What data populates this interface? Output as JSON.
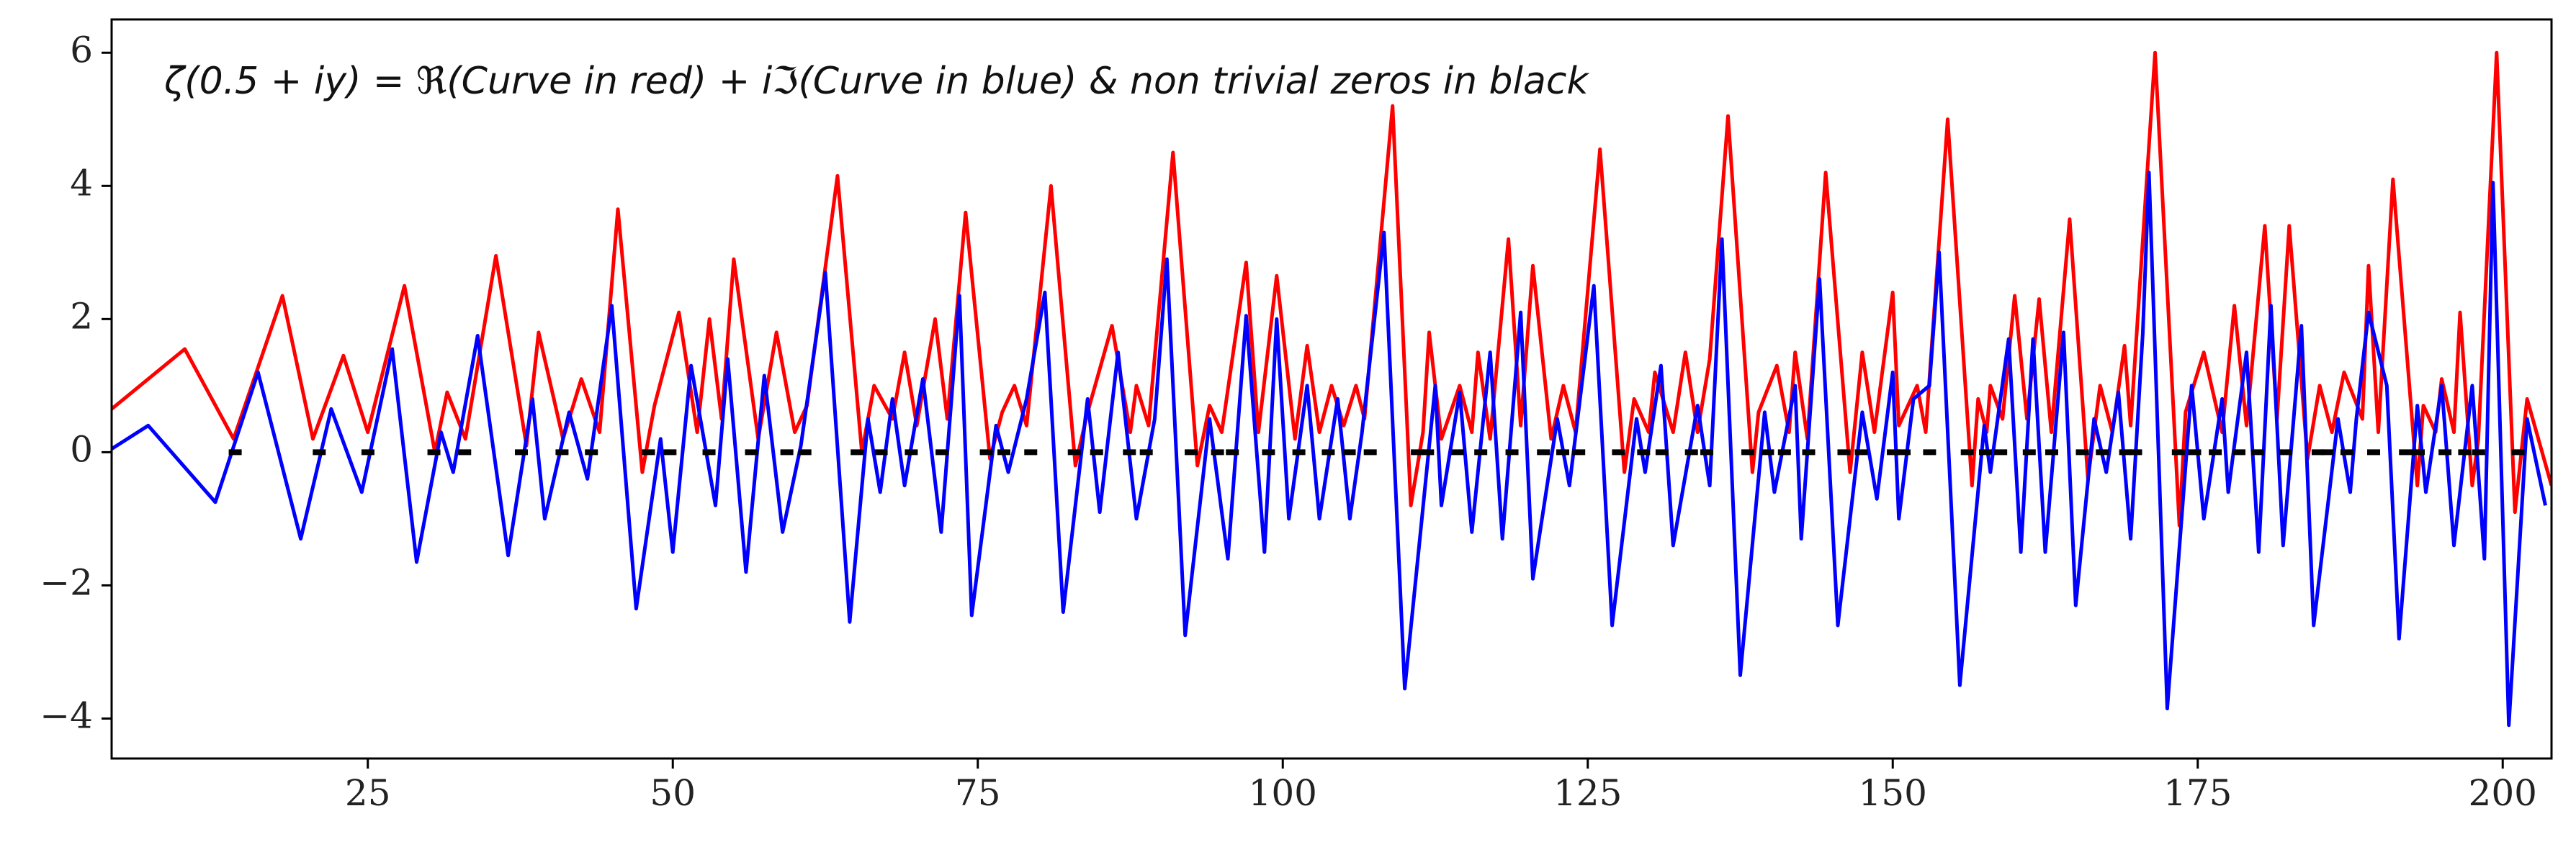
{
  "chart_data": {
    "type": "line",
    "title": "ζ(0.5 + iy) = ℜ(Curve in red) + iℑ(Curve in blue) & non trivial zeros in black",
    "xlim": [
      4,
      204
    ],
    "ylim": [
      -4.6,
      6.5
    ],
    "xticks": [
      25,
      50,
      75,
      100,
      125,
      150,
      175,
      200
    ],
    "yticks": [
      {
        "value": -4,
        "label": "−4"
      },
      {
        "value": -2,
        "label": "−2"
      },
      0,
      2,
      4,
      6
    ],
    "series": [
      {
        "color": "#ff0000",
        "x": [
          4,
          10,
          14,
          18,
          20.5,
          23,
          25,
          28,
          30.5,
          31.5,
          33,
          35.5,
          38,
          39,
          41,
          42.5,
          44,
          45.5,
          47.5,
          48.5,
          50.5,
          52,
          53,
          54,
          55,
          57,
          58.5,
          60,
          61,
          63.5,
          65.5,
          66.5,
          68,
          69,
          70,
          71.5,
          72.5,
          74,
          76,
          77,
          78,
          79,
          81,
          83,
          84,
          86,
          87.5,
          88,
          89,
          91,
          93,
          94,
          95,
          97,
          98,
          99.5,
          101,
          102,
          103,
          104,
          105,
          106,
          106.7,
          109,
          110.5,
          111.5,
          112,
          113,
          114.5,
          115.5,
          116,
          117,
          118.5,
          119.5,
          120.5,
          122,
          123,
          124,
          126,
          128,
          128.8,
          130,
          130.5,
          132,
          133,
          134,
          135,
          136.5,
          138.5,
          139,
          140.5,
          141.5,
          142,
          143,
          144.5,
          146.5,
          147.5,
          148.5,
          150,
          150.5,
          152,
          152.7,
          154.5,
          156.5,
          157,
          157.7,
          158,
          159,
          160,
          161,
          162,
          163,
          164.5,
          166,
          167,
          168,
          169,
          169.5,
          171.5,
          173.5,
          174,
          175.5,
          177,
          178,
          179,
          180.5,
          181.5,
          182.5,
          184,
          185,
          186,
          187,
          188.5,
          189,
          189.8,
          191,
          193,
          193.5,
          194.5,
          195,
          196,
          196.5,
          197.5,
          198,
          199.5,
          201,
          202,
          204
        ],
        "values": [
          0.65,
          1.55,
          0.2,
          2.35,
          0.2,
          1.45,
          0.3,
          2.5,
          0,
          0.9,
          0.2,
          2.95,
          0.1,
          1.8,
          0.2,
          1.1,
          0.3,
          3.65,
          -0.3,
          0.7,
          2.1,
          0.3,
          2,
          0.5,
          2.9,
          0.2,
          1.8,
          0.3,
          0.7,
          4.15,
          0,
          1,
          0.5,
          1.5,
          0.4,
          2,
          0.5,
          3.6,
          -0.1,
          0.6,
          1,
          0.4,
          4,
          -0.2,
          0.6,
          1.9,
          0.3,
          1,
          0.4,
          4.5,
          -0.2,
          0.7,
          0.3,
          2.85,
          0.3,
          2.65,
          0.2,
          1.6,
          0.3,
          1,
          0.4,
          1,
          0.5,
          5.2,
          -0.8,
          0.3,
          1.8,
          0.2,
          1,
          0.3,
          1.5,
          0.2,
          3.2,
          0.4,
          2.8,
          0.2,
          1,
          0.3,
          4.55,
          -0.3,
          0.8,
          0.3,
          1.2,
          0.3,
          1.5,
          0.3,
          1.4,
          5.05,
          -0.3,
          0.6,
          1.3,
          0.3,
          1.5,
          0.2,
          4.2,
          -0.3,
          1.5,
          0.3,
          2.4,
          0.4,
          1,
          0.3,
          5,
          -0.5,
          0.8,
          0.3,
          1,
          0.5,
          2.35,
          0.5,
          2.3,
          0.3,
          3.5,
          -0.4,
          1,
          0.3,
          1.6,
          0.4,
          6,
          -1.1,
          0.6,
          1.5,
          0.3,
          2.2,
          0.4,
          3.4,
          0.5,
          3.4,
          -0.1,
          1,
          0.3,
          1.2,
          0.5,
          2.8,
          0.3,
          4.1,
          -0.5,
          0.7,
          0.3,
          1.1,
          0.3,
          2.1,
          -0.5,
          0.2,
          6,
          -0.9,
          0.8,
          -0.5
        ]
      },
      {
        "color": "#0000ff",
        "x": [
          4,
          7,
          12.5,
          16,
          19.5,
          22,
          24.5,
          27,
          29,
          31,
          32,
          34,
          36.5,
          38.5,
          39.5,
          41.5,
          43,
          45,
          47,
          49,
          50,
          51.5,
          53.5,
          54.5,
          56,
          57.5,
          59,
          60.5,
          62.5,
          64.5,
          66,
          67,
          68,
          69,
          70.5,
          72,
          73.5,
          74.5,
          76.5,
          77.5,
          79,
          80.5,
          82,
          84,
          85,
          86.5,
          88,
          89.5,
          90.5,
          92,
          94,
          95.5,
          97,
          98.5,
          99.5,
          100.5,
          102,
          103,
          104.5,
          105.5,
          106.5,
          108.3,
          110,
          112.5,
          113,
          114.5,
          115.5,
          117,
          118,
          119.5,
          120.5,
          122.5,
          123.5,
          125.5,
          127,
          129,
          129.7,
          131,
          132,
          134,
          135,
          136,
          137.5,
          139.5,
          140.3,
          142,
          142.5,
          144,
          145.5,
          147.5,
          148.7,
          150,
          150.5,
          151.7,
          153,
          153.8,
          155.5,
          157.5,
          158,
          159.5,
          160.5,
          161.5,
          162.5,
          164,
          165,
          166.5,
          167.5,
          168.5,
          169.5,
          170.5,
          171,
          172.5,
          174.5,
          175.5,
          177,
          177.5,
          179,
          180,
          181,
          182,
          183.5,
          184.5,
          186.5,
          187.5,
          188,
          189,
          190.5,
          191.5,
          193,
          193.7,
          195,
          196,
          197.5,
          198.5,
          199.2,
          200.5,
          202,
          203.5
        ],
        "values": [
          0.05,
          0.4,
          -0.75,
          1.2,
          -1.3,
          0.65,
          -0.6,
          1.55,
          -1.65,
          0.3,
          -0.3,
          1.75,
          -1.55,
          0.8,
          -1,
          0.6,
          -0.4,
          2.2,
          -2.35,
          0.2,
          -1.5,
          1.3,
          -0.8,
          1.4,
          -1.8,
          1.15,
          -1.2,
          0.1,
          2.7,
          -2.55,
          0.5,
          -0.6,
          0.8,
          -0.5,
          1.1,
          -1.2,
          2.35,
          -2.45,
          0.4,
          -0.3,
          0.8,
          2.4,
          -2.4,
          0.8,
          -0.9,
          1.5,
          -1,
          0.5,
          2.9,
          -2.75,
          0.5,
          -1.6,
          2.05,
          -1.5,
          2,
          -1,
          1,
          -1,
          0.8,
          -1,
          0.3,
          3.3,
          -3.55,
          1,
          -0.8,
          0.9,
          -1.2,
          1.5,
          -1.3,
          2.1,
          -1.9,
          0.5,
          -0.5,
          2.5,
          -2.6,
          0.5,
          -0.3,
          1.3,
          -1.4,
          0.7,
          -0.5,
          3.2,
          -3.35,
          0.6,
          -0.6,
          1,
          -1.3,
          2.6,
          -2.6,
          0.6,
          -0.7,
          1.2,
          -1,
          0.8,
          1,
          3,
          -3.5,
          0.4,
          -0.3,
          1.7,
          -1.5,
          1.7,
          -1.5,
          1.8,
          -2.3,
          0.5,
          -0.3,
          0.9,
          -1.3,
          1.8,
          4.2,
          -3.85,
          1,
          -1,
          0.8,
          -0.6,
          1.5,
          -1.5,
          2.2,
          -1.4,
          1.9,
          -2.6,
          0.5,
          -0.6,
          0.5,
          2.1,
          1,
          -2.8,
          0.7,
          -0.6,
          1,
          -1.4,
          1,
          -1.6,
          4.05,
          -4.1,
          0.5,
          -0.8
        ]
      }
    ],
    "zeros": {
      "color": "#000000",
      "x": [
        14.13,
        21.02,
        25.01,
        30.42,
        32.94,
        37.59,
        40.92,
        43.33,
        48.01,
        49.77,
        52.97,
        56.45,
        59.35,
        60.83,
        65.11,
        67.08,
        69.55,
        72.07,
        75.7,
        77.14,
        79.34,
        82.91,
        84.74,
        87.43,
        88.81,
        92.49,
        94.65,
        95.87,
        98.83,
        101.32,
        103.73,
        105.45,
        107.17,
        111.03,
        111.87,
        114.32,
        116.23,
        118.79,
        121.37,
        122.95,
        124.26,
        127.52,
        129.58,
        131.09,
        133.5,
        134.76,
        138.12,
        139.74,
        141.12,
        143.11,
        146,
        147.42,
        150.05,
        150.93,
        153.02,
        156.11,
        157.6,
        158.85,
        161.19,
        163.03,
        165.54,
        167.18,
        169.09,
        169.91,
        173.41,
        174.75,
        176.44,
        178.38,
        179.92,
        182.21,
        184.87,
        185.6,
        187.23,
        189.42,
        192.03,
        193.08,
        195.27,
        196.88,
        198.02,
        201.26
      ]
    }
  }
}
